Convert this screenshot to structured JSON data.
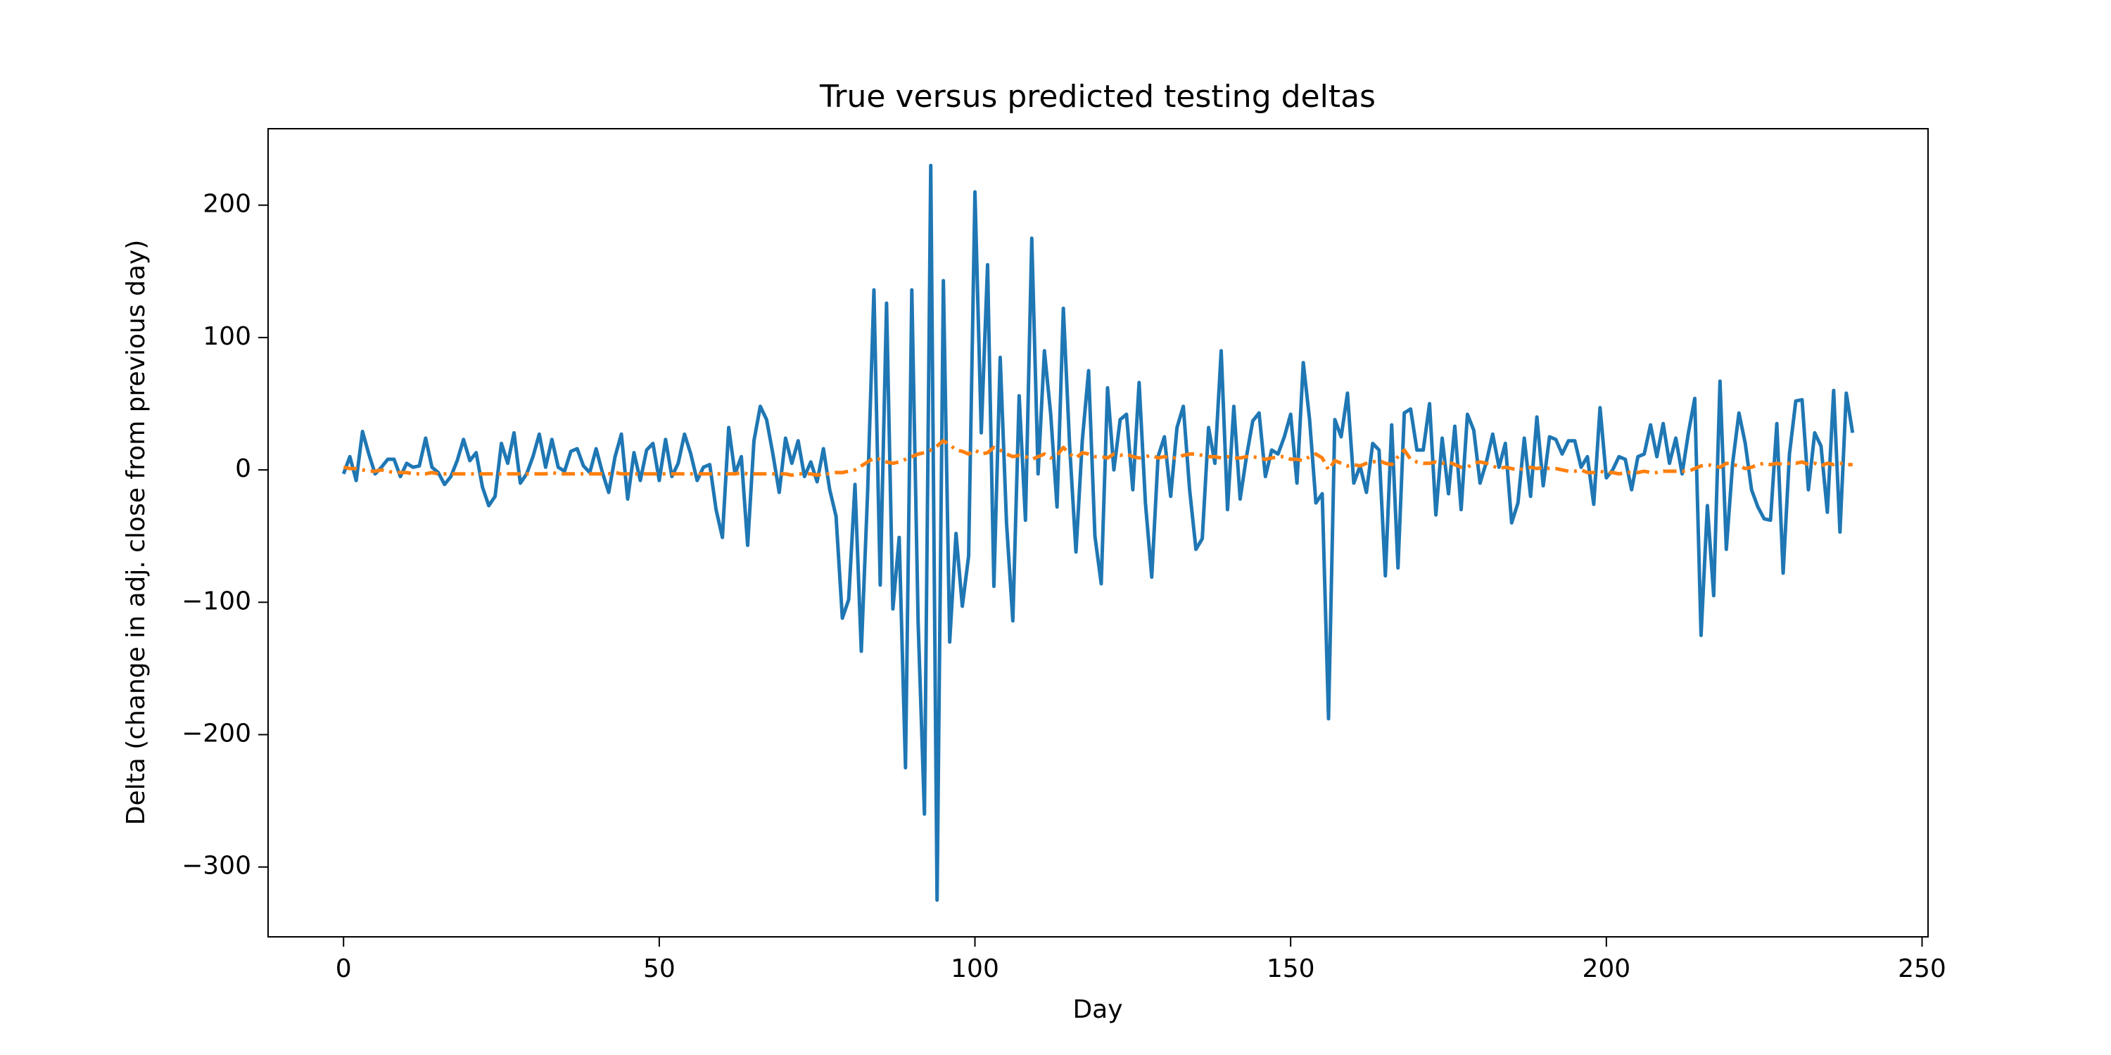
{
  "chart_data": {
    "type": "line",
    "title": "True versus predicted testing deltas",
    "x_label": "Day",
    "y_label": "Delta (change in adj. close from previous day)",
    "x": [
      0,
      1,
      2,
      3,
      4,
      5,
      6,
      7,
      8,
      9,
      10,
      11,
      12,
      13,
      14,
      15,
      16,
      17,
      18,
      19,
      20,
      21,
      22,
      23,
      24,
      25,
      26,
      27,
      28,
      29,
      30,
      31,
      32,
      33,
      34,
      35,
      36,
      37,
      38,
      39,
      40,
      41,
      42,
      43,
      44,
      45,
      46,
      47,
      48,
      49,
      50,
      51,
      52,
      53,
      54,
      55,
      56,
      57,
      58,
      59,
      60,
      61,
      62,
      63,
      64,
      65,
      66,
      67,
      68,
      69,
      70,
      71,
      72,
      73,
      74,
      75,
      76,
      77,
      78,
      79,
      80,
      81,
      82,
      83,
      84,
      85,
      86,
      87,
      88,
      89,
      90,
      91,
      92,
      93,
      94,
      95,
      96,
      97,
      98,
      99,
      100,
      101,
      102,
      103,
      104,
      105,
      106,
      107,
      108,
      109,
      110,
      111,
      112,
      113,
      114,
      115,
      116,
      117,
      118,
      119,
      120,
      121,
      122,
      123,
      124,
      125,
      126,
      127,
      128,
      129,
      130,
      131,
      132,
      133,
      134,
      135,
      136,
      137,
      138,
      139,
      140,
      141,
      142,
      143,
      144,
      145,
      146,
      147,
      148,
      149,
      150,
      151,
      152,
      153,
      154,
      155,
      156,
      157,
      158,
      159,
      160,
      161,
      162,
      163,
      164,
      165,
      166,
      167,
      168,
      169,
      170,
      171,
      172,
      173,
      174,
      175,
      176,
      177,
      178,
      179,
      180,
      181,
      182,
      183,
      184,
      185,
      186,
      187,
      188,
      189,
      190,
      191,
      192,
      193,
      194,
      195,
      196,
      197,
      198,
      199,
      200,
      201,
      202,
      203,
      204,
      205,
      206,
      207,
      208,
      209,
      210,
      211,
      212,
      213,
      214,
      215,
      216,
      217,
      218,
      219,
      220,
      221,
      222,
      223,
      224,
      225,
      226,
      227,
      228,
      229,
      230,
      231,
      232,
      233,
      234,
      235,
      236,
      237,
      238,
      239
    ],
    "series": [
      {
        "color": "#1f77b4",
        "linestyle": "solid",
        "values": [
          -3,
          10,
          -8,
          29,
          12,
          -3,
          2,
          8,
          8,
          -5,
          5,
          2,
          3,
          24,
          2,
          -2,
          -11,
          -5,
          7,
          23,
          7,
          13,
          -13,
          -27,
          -20,
          20,
          5,
          28,
          -10,
          -3,
          10,
          27,
          2,
          23,
          2,
          -1,
          14,
          16,
          3,
          -2,
          16,
          -2,
          -17,
          10,
          27,
          -22,
          13,
          -8,
          15,
          20,
          -8,
          23,
          -5,
          5,
          27,
          12,
          -8,
          2,
          4,
          -30,
          -51,
          32,
          -3,
          10,
          -57,
          22,
          48,
          38,
          12,
          -17,
          24,
          5,
          22,
          -5,
          6,
          -9,
          16,
          -15,
          -35,
          -112,
          -98,
          -11,
          -137,
          -17,
          136,
          -87,
          126,
          -105,
          -51,
          -225,
          136,
          -115,
          -260,
          230,
          -325,
          143,
          -130,
          -48,
          -103,
          -65,
          210,
          28,
          155,
          -88,
          85,
          -40,
          -114,
          56,
          -38,
          175,
          -3,
          90,
          42,
          -28,
          122,
          18,
          -62,
          22,
          75,
          -50,
          -86,
          62,
          0,
          38,
          42,
          -15,
          66,
          -25,
          -81,
          10,
          25,
          -20,
          32,
          48,
          -15,
          -60,
          -52,
          32,
          5,
          90,
          -30,
          48,
          -22,
          10,
          37,
          43,
          -5,
          15,
          12,
          25,
          42,
          -10,
          81,
          38,
          -25,
          -18,
          -188,
          38,
          25,
          58,
          -10,
          3,
          -17,
          20,
          15,
          -80,
          34,
          -74,
          43,
          46,
          15,
          15,
          50,
          -34,
          24,
          -18,
          33,
          -30,
          42,
          30,
          -10,
          6,
          27,
          2,
          20,
          -40,
          -25,
          24,
          -20,
          40,
          -12,
          25,
          23,
          12,
          22,
          22,
          2,
          10,
          -26,
          47,
          -6,
          0,
          10,
          8,
          -15,
          10,
          12,
          34,
          10,
          35,
          5,
          24,
          -3,
          28,
          54,
          -125,
          -27,
          -95,
          67,
          -60,
          5,
          43,
          20,
          -15,
          -28,
          -37,
          -38,
          35,
          -78,
          12,
          52,
          53,
          -15,
          28,
          18,
          -32,
          60,
          -47,
          58,
          28
        ]
      },
      {
        "color": "#ff7f0e",
        "linestyle": "dashdot",
        "values": [
          2,
          1,
          1,
          0,
          -1,
          -1,
          0,
          -1,
          -2,
          -2,
          -2,
          -3,
          -3,
          -3,
          -2,
          -3,
          -3,
          -3,
          -3,
          -3,
          -3,
          -3,
          -3,
          -3,
          -3,
          -3,
          -3,
          -3,
          -3,
          -3,
          -3,
          -3,
          -3,
          -2,
          -3,
          -3,
          -3,
          -3,
          -3,
          -3,
          -3,
          -3,
          -3,
          -2,
          -3,
          -3,
          -3,
          -3,
          -3,
          -3,
          -3,
          -3,
          -3,
          -3,
          -3,
          -3,
          -3,
          -3,
          -3,
          -3,
          -3,
          -3,
          -3,
          -2,
          -3,
          -3,
          -3,
          -3,
          -3,
          -3,
          -3,
          -4,
          -3,
          -3,
          -3,
          -4,
          -3,
          -3,
          -2,
          -2,
          -1,
          0,
          3,
          6,
          9,
          8,
          6,
          5,
          6,
          8,
          10,
          12,
          13,
          15,
          18,
          22,
          19,
          15,
          14,
          12,
          15,
          12,
          13,
          17,
          15,
          12,
          10,
          11,
          10,
          8,
          10,
          12,
          9,
          11,
          17,
          12,
          9,
          13,
          12,
          10,
          10,
          9,
          12,
          11,
          12,
          10,
          9,
          10,
          11,
          9,
          10,
          9,
          9,
          11,
          12,
          12,
          11,
          10,
          10,
          9,
          10,
          9,
          9,
          10,
          10,
          9,
          8,
          9,
          10,
          10,
          8,
          8,
          7,
          10,
          12,
          9,
          0,
          7,
          5,
          3,
          4,
          3,
          5,
          6,
          7,
          5,
          4,
          10,
          15,
          8,
          6,
          5,
          5,
          6,
          5,
          6,
          4,
          2,
          2,
          5,
          6,
          5,
          3,
          1,
          2,
          1,
          0,
          1,
          2,
          1,
          2,
          1,
          1,
          0,
          -1,
          -1,
          0,
          -2,
          -2,
          -1,
          -2,
          -2,
          -3,
          -2,
          -2,
          -2,
          -1,
          -2,
          -2,
          -1,
          -1,
          -1,
          -1,
          -1,
          1,
          3,
          4,
          3,
          2,
          5,
          4,
          3,
          1,
          2,
          4,
          5,
          4,
          5,
          4,
          5,
          5,
          6,
          4,
          5,
          3,
          5,
          4,
          5,
          4,
          4
        ]
      }
    ],
    "xlim": [
      -11.95,
      250.95
    ],
    "ylim": [
      -352.75,
      257.75
    ],
    "xticks": [
      0,
      50,
      100,
      150,
      200,
      250
    ],
    "yticks": [
      {
        "value": -300,
        "label": "−300"
      },
      {
        "value": -200,
        "label": "−200"
      },
      {
        "value": -100,
        "label": "−100"
      },
      0,
      100,
      200
    ],
    "grid": false
  }
}
